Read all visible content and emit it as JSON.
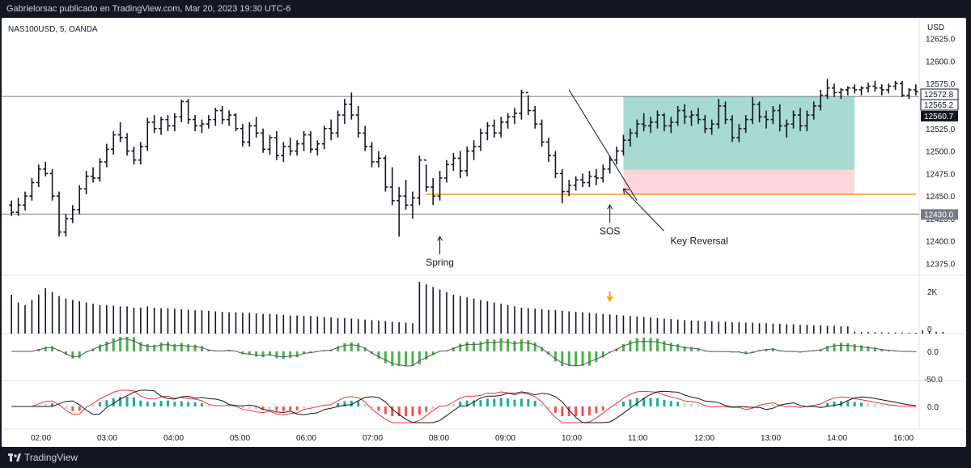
{
  "header": {
    "attribution": "Gabrielorsac publicado en TradingView.com, Mar 20, 2023 19:30 UTC-6"
  },
  "footer": {
    "brand": "TradingView"
  },
  "chart_data": {
    "type": "ohlc-bar",
    "symbol_label": "NAS100USD, 5, OANDA",
    "currency": "USD",
    "x_ticks": [
      "02:00",
      "03:00",
      "04:00",
      "05:00",
      "06:00",
      "07:00",
      "08:00",
      "09:00",
      "10:00",
      "11:00",
      "12:00",
      "13:00",
      "14:00",
      "16:00"
    ],
    "y_ticks": [
      "12625.0",
      "12600.0",
      "12575.0",
      "12550.0",
      "12525.0",
      "12500.0",
      "12475.0",
      "12450.0",
      "12425.0",
      "12400.0",
      "12375.0"
    ],
    "ylim": [
      12362,
      12648
    ],
    "price_labels": [
      {
        "value": "12572.8",
        "style": "outline"
      },
      {
        "value": "12565.2",
        "style": "outline"
      },
      {
        "value": "12560.7",
        "style": "dark"
      },
      {
        "value": "12430.0",
        "style": "grey"
      }
    ],
    "horizontal_lines": [
      {
        "value": 12560.7,
        "color": "#787b86"
      },
      {
        "value": 12430.0,
        "color": "#787b86"
      }
    ],
    "support_line": {
      "value": 12452,
      "color": "#f0a020",
      "from_bar": 61,
      "to_bar": 133
    },
    "trend_line": {
      "from_bar": 82,
      "from_price": 12568,
      "to_bar": 92,
      "to_price": 12445
    },
    "position_box": {
      "from_bar": 90,
      "to_bar": 124,
      "entry": 12479,
      "target": 12561,
      "stop": 12452,
      "profit_color": "#a7dbd0",
      "loss_color": "#fbd6da"
    },
    "annotations": [
      {
        "text": "Spring",
        "bar": 63,
        "price": 12405
      },
      {
        "text": "SOS",
        "bar": 88,
        "price": 12440
      },
      {
        "text": "Key Reversal",
        "bar": 90,
        "price": 12458
      }
    ],
    "volume_axis": {
      "ticks": [
        "2K",
        "0"
      ],
      "max": 2000
    },
    "macd_axis": {
      "ticks": [
        "0.0",
        "-50.0"
      ]
    },
    "osc_axis": {
      "ticks": [
        "0.0"
      ]
    },
    "bars": [
      [
        12440,
        12445,
        12428,
        12432
      ],
      [
        12432,
        12448,
        12428,
        12440
      ],
      [
        12440,
        12455,
        12434,
        12450
      ],
      [
        12450,
        12470,
        12445,
        12465
      ],
      [
        12465,
        12485,
        12460,
        12480
      ],
      [
        12480,
        12488,
        12472,
        12475
      ],
      [
        12475,
        12480,
        12445,
        12450
      ],
      [
        12450,
        12455,
        12405,
        12410
      ],
      [
        12410,
        12430,
        12405,
        12425
      ],
      [
        12425,
        12440,
        12420,
        12435
      ],
      [
        12435,
        12462,
        12430,
        12458
      ],
      [
        12458,
        12478,
        12452,
        12472
      ],
      [
        12472,
        12482,
        12465,
        12470
      ],
      [
        12470,
        12492,
        12466,
        12488
      ],
      [
        12488,
        12508,
        12482,
        12502
      ],
      [
        12502,
        12522,
        12496,
        12518
      ],
      [
        12518,
        12532,
        12510,
        12515
      ],
      [
        12515,
        12520,
        12495,
        12500
      ],
      [
        12500,
        12505,
        12485,
        12490
      ],
      [
        12490,
        12510,
        12485,
        12505
      ],
      [
        12505,
        12537,
        12500,
        12532
      ],
      [
        12532,
        12540,
        12520,
        12525
      ],
      [
        12525,
        12538,
        12518,
        12535
      ],
      [
        12535,
        12540,
        12522,
        12528
      ],
      [
        12528,
        12542,
        12522,
        12538
      ],
      [
        12538,
        12557,
        12532,
        12555
      ],
      [
        12555,
        12558,
        12530,
        12535
      ],
      [
        12535,
        12540,
        12522,
        12528
      ],
      [
        12528,
        12535,
        12520,
        12530
      ],
      [
        12530,
        12540,
        12525,
        12535
      ],
      [
        12535,
        12548,
        12528,
        12545
      ],
      [
        12545,
        12550,
        12530,
        12535
      ],
      [
        12535,
        12545,
        12528,
        12540
      ],
      [
        12540,
        12542,
        12522,
        12525
      ],
      [
        12525,
        12530,
        12505,
        12510
      ],
      [
        12510,
        12532,
        12505,
        12528
      ],
      [
        12528,
        12538,
        12515,
        12520
      ],
      [
        12520,
        12525,
        12498,
        12502
      ],
      [
        12502,
        12518,
        12496,
        12515
      ],
      [
        12515,
        12522,
        12490,
        12495
      ],
      [
        12495,
        12510,
        12488,
        12505
      ],
      [
        12505,
        12515,
        12495,
        12500
      ],
      [
        12500,
        12512,
        12495,
        12508
      ],
      [
        12508,
        12522,
        12500,
        12518
      ],
      [
        12518,
        12522,
        12498,
        12502
      ],
      [
        12502,
        12512,
        12495,
        12508
      ],
      [
        12508,
        12528,
        12502,
        12525
      ],
      [
        12525,
        12535,
        12512,
        12520
      ],
      [
        12520,
        12545,
        12515,
        12540
      ],
      [
        12540,
        12558,
        12530,
        12552
      ],
      [
        12552,
        12565,
        12535,
        12540
      ],
      [
        12540,
        12550,
        12515,
        12520
      ],
      [
        12520,
        12528,
        12500,
        12505
      ],
      [
        12505,
        12510,
        12482,
        12488
      ],
      [
        12488,
        12500,
        12482,
        12492
      ],
      [
        12492,
        12495,
        12455,
        12460
      ],
      [
        12460,
        12482,
        12440,
        12445
      ],
      [
        12445,
        12460,
        12405,
        12450
      ],
      [
        12450,
        12468,
        12435,
        12440
      ],
      [
        12440,
        12455,
        12425,
        12448
      ],
      [
        12448,
        12495,
        12440,
        12490
      ],
      [
        12490,
        12485,
        12455,
        12460
      ],
      [
        12460,
        12470,
        12440,
        12450
      ],
      [
        12450,
        12478,
        12445,
        12470
      ],
      [
        12470,
        12490,
        12465,
        12485
      ],
      [
        12485,
        12498,
        12478,
        12492
      ],
      [
        12492,
        12500,
        12470,
        12478
      ],
      [
        12478,
        12505,
        12472,
        12500
      ],
      [
        12500,
        12512,
        12490,
        12505
      ],
      [
        12505,
        12525,
        12500,
        12520
      ],
      [
        12520,
        12532,
        12512,
        12528
      ],
      [
        12528,
        12535,
        12515,
        12520
      ],
      [
        12520,
        12538,
        12515,
        12532
      ],
      [
        12532,
        12542,
        12525,
        12538
      ],
      [
        12538,
        12548,
        12530,
        12542
      ],
      [
        12542,
        12568,
        12535,
        12565
      ],
      [
        12565,
        12562,
        12540,
        12545
      ],
      [
        12545,
        12550,
        12525,
        12530
      ],
      [
        12530,
        12535,
        12505,
        12510
      ],
      [
        12510,
        12515,
        12488,
        12495
      ],
      [
        12495,
        12500,
        12470,
        12475
      ],
      [
        12475,
        12480,
        12442,
        12455
      ],
      [
        12455,
        12468,
        12450,
        12462
      ],
      [
        12462,
        12472,
        12456,
        12468
      ],
      [
        12468,
        12475,
        12460,
        12465
      ],
      [
        12465,
        12478,
        12460,
        12472
      ],
      [
        12472,
        12480,
        12462,
        12470
      ],
      [
        12470,
        12485,
        12465,
        12480
      ],
      [
        12480,
        12495,
        12475,
        12490
      ],
      [
        12490,
        12505,
        12485,
        12500
      ],
      [
        12500,
        12518,
        12495,
        12512
      ],
      [
        12512,
        12525,
        12505,
        12520
      ],
      [
        12520,
        12535,
        12515,
        12530
      ],
      [
        12530,
        12542,
        12522,
        12528
      ],
      [
        12528,
        12538,
        12520,
        12532
      ],
      [
        12532,
        12545,
        12525,
        12540
      ],
      [
        12540,
        12542,
        12522,
        12528
      ],
      [
        12528,
        12538,
        12520,
        12532
      ],
      [
        12532,
        12550,
        12528,
        12545
      ],
      [
        12545,
        12552,
        12530,
        12538
      ],
      [
        12538,
        12545,
        12528,
        12540
      ],
      [
        12540,
        12548,
        12530,
        12535
      ],
      [
        12535,
        12540,
        12520,
        12525
      ],
      [
        12525,
        12535,
        12518,
        12530
      ],
      [
        12530,
        12558,
        12525,
        12550
      ],
      [
        12550,
        12555,
        12530,
        12535
      ],
      [
        12535,
        12540,
        12510,
        12515
      ],
      [
        12515,
        12530,
        12510,
        12525
      ],
      [
        12525,
        12540,
        12520,
        12535
      ],
      [
        12535,
        12560,
        12530,
        12552
      ],
      [
        12552,
        12555,
        12532,
        12538
      ],
      [
        12538,
        12545,
        12525,
        12535
      ],
      [
        12535,
        12550,
        12530,
        12545
      ],
      [
        12545,
        12552,
        12522,
        12528
      ],
      [
        12528,
        12535,
        12515,
        12530
      ],
      [
        12530,
        12545,
        12525,
        12540
      ],
      [
        12540,
        12548,
        12522,
        12528
      ],
      [
        12528,
        12545,
        12522,
        12540
      ],
      [
        12540,
        12555,
        12535,
        12550
      ],
      [
        12550,
        12568,
        12545,
        12562
      ],
      [
        12562,
        12580,
        12558,
        12570
      ],
      [
        12570,
        12575,
        12560,
        12565
      ],
      [
        12565,
        12570,
        12558,
        12568
      ],
      [
        12568,
        12572,
        12562,
        12570
      ],
      [
        12570,
        12574,
        12564,
        12568
      ],
      [
        12568,
        12572,
        12562,
        12570
      ],
      [
        12570,
        12576,
        12565,
        12572
      ],
      [
        12572,
        12578,
        12566,
        12570
      ],
      [
        12570,
        12574,
        12562,
        12568
      ],
      [
        12568,
        12575,
        12564,
        12572
      ],
      [
        12572,
        12578,
        12568,
        12575
      ],
      [
        12575,
        12578,
        12560,
        12562
      ],
      [
        12562,
        12570,
        12558,
        12568
      ],
      [
        12568,
        12574,
        12562,
        12566
      ]
    ],
    "volume": [
      1500,
      1200,
      1100,
      1300,
      1500,
      1750,
      1600,
      1450,
      1350,
      1300,
      1250,
      1200,
      1150,
      1100,
      1100,
      1080,
      1050,
      1050,
      1000,
      1000,
      1050,
      1000,
      980,
      980,
      960,
      940,
      920,
      900,
      900,
      880,
      860,
      840,
      820,
      820,
      800,
      800,
      780,
      760,
      760,
      740,
      720,
      700,
      700,
      680,
      680,
      660,
      640,
      620,
      600,
      600,
      580,
      560,
      540,
      520,
      500,
      480,
      460,
      440,
      420,
      400,
      2000,
      1900,
      1800,
      1700,
      1600,
      1500,
      1450,
      1400,
      1350,
      1300,
      1250,
      1200,
      1150,
      1100,
      1050,
      1000,
      980,
      960,
      940,
      920,
      900,
      880,
      860,
      840,
      820,
      800,
      780,
      760,
      740,
      720,
      700,
      680,
      660,
      640,
      620,
      600,
      580,
      560,
      540,
      520,
      500,
      500,
      480,
      480,
      460,
      460,
      440,
      440,
      420,
      420,
      400,
      400,
      380,
      380,
      360,
      360,
      340,
      340,
      320,
      320,
      300,
      300,
      280,
      280,
      80,
      60,
      60,
      50,
      50,
      40,
      40,
      40,
      30,
      30,
      120,
      90,
      70,
      60
    ]
  }
}
